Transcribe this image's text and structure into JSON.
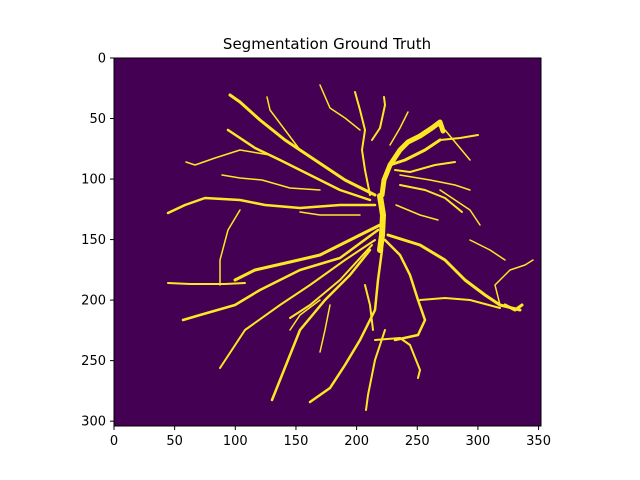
{
  "figure": {
    "title": "Segmentation Ground Truth"
  },
  "image": {
    "kind": "vessel-segmentation-mask",
    "width": 352,
    "height": 304,
    "background_color": "#440154",
    "vessel_color": "#fde725",
    "edge_color": "#21918c"
  },
  "axes": {
    "x_ticks": [
      {
        "value": 0,
        "label": "0"
      },
      {
        "value": 50,
        "label": "50"
      },
      {
        "value": 100,
        "label": "100"
      },
      {
        "value": 150,
        "label": "150"
      },
      {
        "value": 200,
        "label": "200"
      },
      {
        "value": 250,
        "label": "250"
      },
      {
        "value": 300,
        "label": "300"
      },
      {
        "value": 350,
        "label": "350"
      }
    ],
    "y_ticks": [
      {
        "value": 0,
        "label": "0"
      },
      {
        "value": 50,
        "label": "50"
      },
      {
        "value": 100,
        "label": "100"
      },
      {
        "value": 150,
        "label": "150"
      },
      {
        "value": 200,
        "label": "200"
      },
      {
        "value": 250,
        "label": "250"
      },
      {
        "value": 300,
        "label": "300"
      }
    ]
  }
}
